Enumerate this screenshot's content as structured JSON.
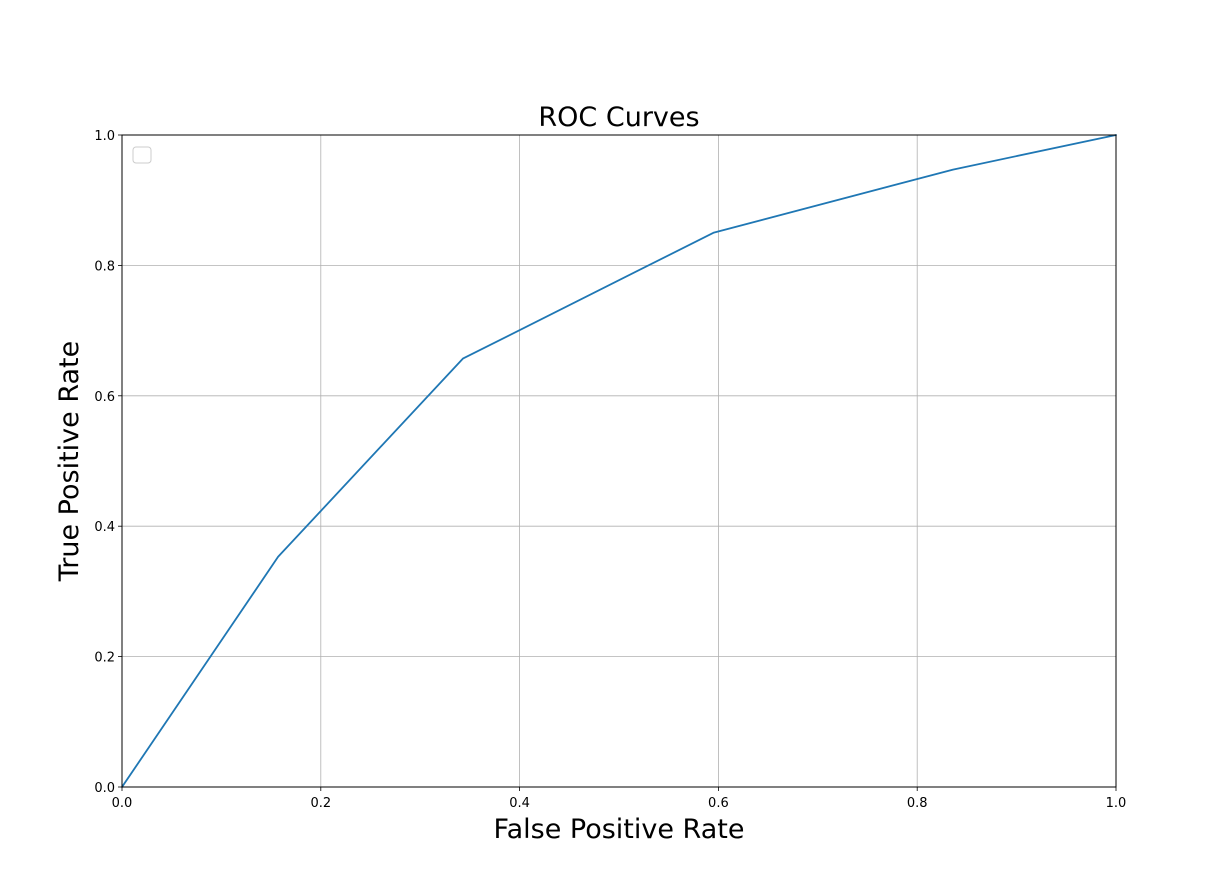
{
  "chart_data": {
    "type": "line",
    "title": "ROC Curves",
    "xlabel": "False Positive Rate",
    "ylabel": "True Positive Rate",
    "xlim": [
      0.0,
      1.0
    ],
    "ylim": [
      0.0,
      1.0
    ],
    "xticks": [
      "0.0",
      "0.2",
      "0.4",
      "0.6",
      "0.8",
      "1.0"
    ],
    "yticks": [
      "0.0",
      "0.2",
      "0.4",
      "0.6",
      "0.8",
      "1.0"
    ],
    "grid": true,
    "legend": {
      "placement": "top-left",
      "entries": []
    },
    "series": [
      {
        "color": "#1f77b4",
        "x": [
          0.0,
          0.157,
          0.343,
          0.595,
          0.836,
          1.0
        ],
        "y": [
          0.0,
          0.353,
          0.657,
          0.85,
          0.947,
          1.0
        ]
      }
    ]
  }
}
